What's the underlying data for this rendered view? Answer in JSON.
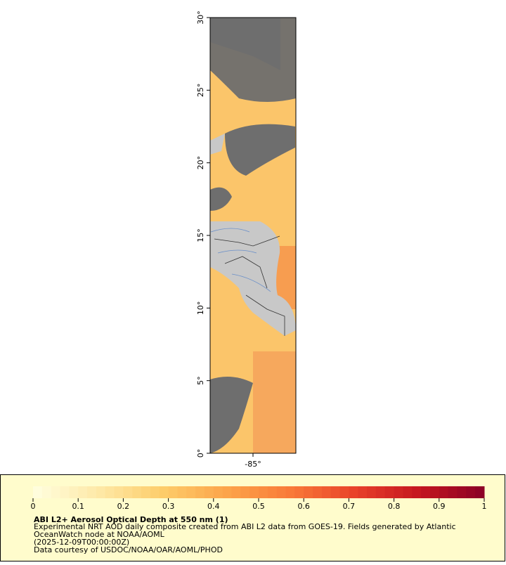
{
  "map": {
    "ylim": [
      0,
      30
    ],
    "xlim": [
      -88,
      -82
    ],
    "yticks": [
      {
        "value": 0,
        "label": "0°"
      },
      {
        "value": 5,
        "label": "5°"
      },
      {
        "value": 10,
        "label": "10°"
      },
      {
        "value": 15,
        "label": "15°"
      },
      {
        "value": 20,
        "label": "20°"
      },
      {
        "value": 25,
        "label": "25°"
      },
      {
        "value": 30,
        "label": "30°"
      }
    ],
    "xticks": [
      {
        "value": -85,
        "label": "-85°"
      }
    ]
  },
  "colorbar": {
    "lim": [
      0,
      1
    ],
    "ticks": [
      0,
      0.1,
      0.2,
      0.3,
      0.4,
      0.5,
      0.6,
      0.7,
      0.8,
      0.9,
      1
    ],
    "colors": [
      "#ffffe0",
      "#fee9a8",
      "#fdcd6a",
      "#fca44a",
      "#f97a38",
      "#e8412a",
      "#c4161f",
      "#8a0026"
    ]
  },
  "legend": {
    "title": "ABI L2+ Aerosol Optical Depth at 550 nm (1)",
    "lines": [
      "Experimental NRT AOD daily composite created from ABI L2 data from GOES-19. Fields generated by Atlantic",
      "OceanWatch node at NOAA/AOML",
      "(2025-12-09T00:00:00Z)",
      "Data courtesy of USDOC/NOAA/OAR/AOML/PHOD"
    ]
  }
}
